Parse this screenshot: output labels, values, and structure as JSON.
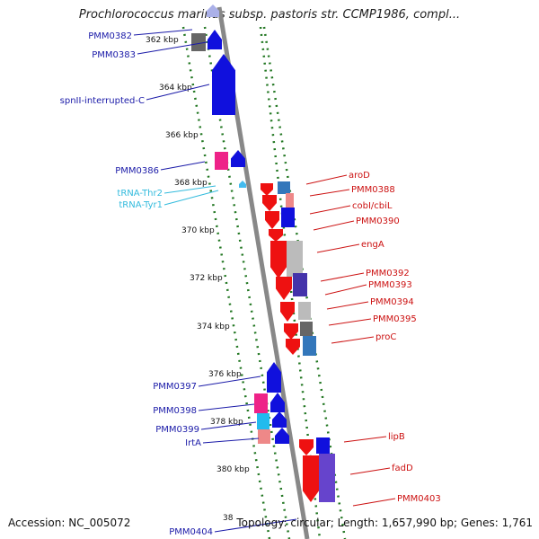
{
  "title": "Prochlorococcus marinus subsp. pastoris str. CCMP1986, compl...",
  "footer": {
    "accession": "Accession: NC_005072",
    "topology": "Topology: circular; Length: 1,657,990 bp; Genes: 1,761"
  },
  "colors": {
    "forward_label": "#1a1aa8",
    "reverse_label": "#cc1111",
    "trna_label": "#33bbdd",
    "tick": "#227722",
    "backbone": "#888888"
  },
  "ticks": [
    "362 kbp",
    "364 kbp",
    "366 kbp",
    "368 kbp",
    "370 kbp",
    "372 kbp",
    "374 kbp",
    "376 kbp",
    "378 kbp",
    "380 kbp",
    "38"
  ],
  "forward_labels": [
    "PMM0382",
    "PMM0383",
    "spnII-interrupted-C",
    "PMM0386",
    "PMM0397",
    "PMM0398",
    "PMM0399",
    "IrtA",
    "PMM0404"
  ],
  "trna_labels": [
    "tRNA-Thr2",
    "tRNA-Tyr1"
  ],
  "reverse_labels": [
    "aroD",
    "PMM0388",
    "cobI/cbiL",
    "PMM0390",
    "engA",
    "PMM0392",
    "PMM0393",
    "PMM0394",
    "PMM0395",
    "proC",
    "lipB",
    "fadD",
    "PMM0403"
  ]
}
